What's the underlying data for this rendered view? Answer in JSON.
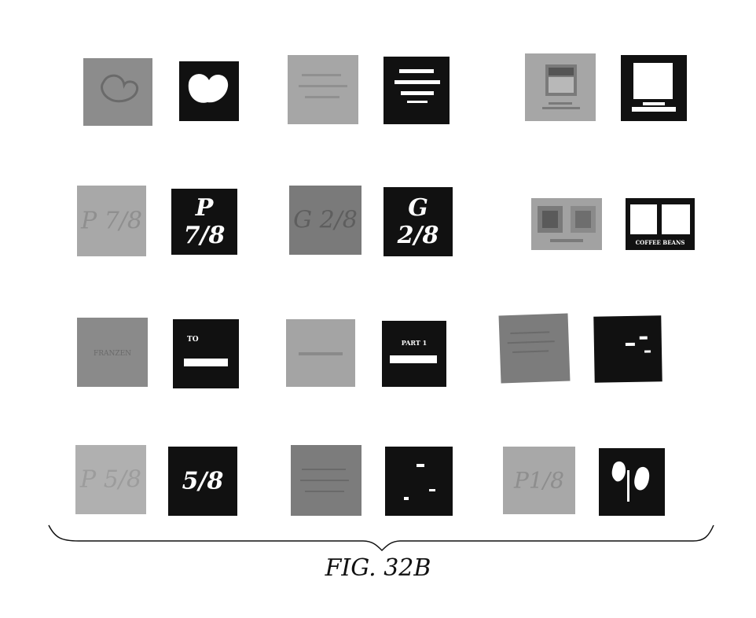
{
  "figure": {
    "caption": "FIG. 32B"
  },
  "colors": {
    "background": "#ffffff",
    "mask": "#111111",
    "mask_fg": "#ffffff",
    "photo_light": "#a8a8a8",
    "photo_mid": "#8e8e8e",
    "photo_dark": "#777777",
    "ink": "#111111"
  },
  "tiles": {
    "r2c1_photo": "P 7/8",
    "r2c1_mask": "P 7/8",
    "r2c2_photo": "G 2/8",
    "r2c2_mask": "G 2/8",
    "r2c3_mask": "COFFEE BEANS",
    "r3c1_photo": "FRANZEN",
    "r3c1_mask_a": "TO",
    "r3c2_mask": "PART 1",
    "r4c1_photo": "P 5/8",
    "r4c1_mask": "5/8",
    "r4c3_photo": "P1/8"
  },
  "icons": {
    "brace": "curly-brace-icon",
    "heart": "heart-icon",
    "monitor": "monitor-icon"
  }
}
